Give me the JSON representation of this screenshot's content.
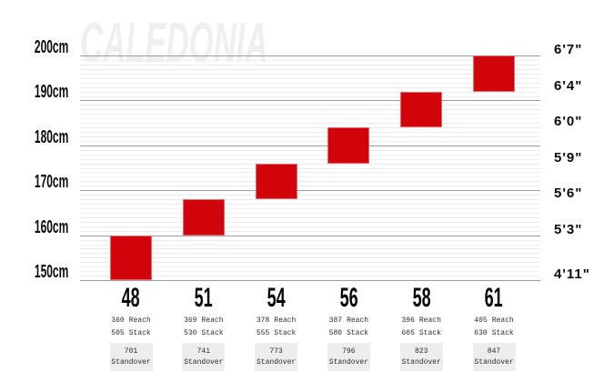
{
  "chart_data": {
    "type": "bar",
    "subtype": "vertical-range-bars",
    "watermark": "CALEDONIA",
    "bar_color": "#d0040a",
    "standover_box_bg": "#ededed",
    "watermark_color": "#efefef",
    "grid": "on",
    "ylim_cm": [
      150,
      200
    ],
    "y_axis_left": {
      "unit": "cm",
      "values_cm": [
        200,
        190,
        180,
        170,
        160,
        150
      ],
      "ticks": [
        "200cm",
        "190cm",
        "180cm",
        "170cm",
        "160cm",
        "150cm"
      ]
    },
    "y_axis_right": {
      "unit": "ft-in",
      "values_cm": [
        200,
        192,
        184,
        176,
        168,
        160,
        150
      ],
      "ticks": [
        "6'7\"",
        "6'4\"",
        "6'0\"",
        "5'9\"",
        "5'6\"",
        "5'3\"",
        "4'11\""
      ]
    },
    "labels": {
      "reach": "Reach",
      "stack": "Stack",
      "standover": "Standover"
    },
    "sizes": [
      {
        "label": "48",
        "reach": "360",
        "stack": "505",
        "standover": "701",
        "height_range_cm": [
          150,
          160
        ]
      },
      {
        "label": "51",
        "reach": "369",
        "stack": "530",
        "standover": "741",
        "height_range_cm": [
          160,
          168
        ]
      },
      {
        "label": "54",
        "reach": "378",
        "stack": "555",
        "standover": "773",
        "height_range_cm": [
          168,
          176
        ]
      },
      {
        "label": "56",
        "reach": "387",
        "stack": "580",
        "standover": "796",
        "height_range_cm": [
          176,
          184
        ]
      },
      {
        "label": "58",
        "reach": "396",
        "stack": "605",
        "standover": "823",
        "height_range_cm": [
          184,
          192
        ]
      },
      {
        "label": "61",
        "reach": "405",
        "stack": "630",
        "standover": "847",
        "height_range_cm": [
          192,
          200
        ]
      }
    ]
  }
}
